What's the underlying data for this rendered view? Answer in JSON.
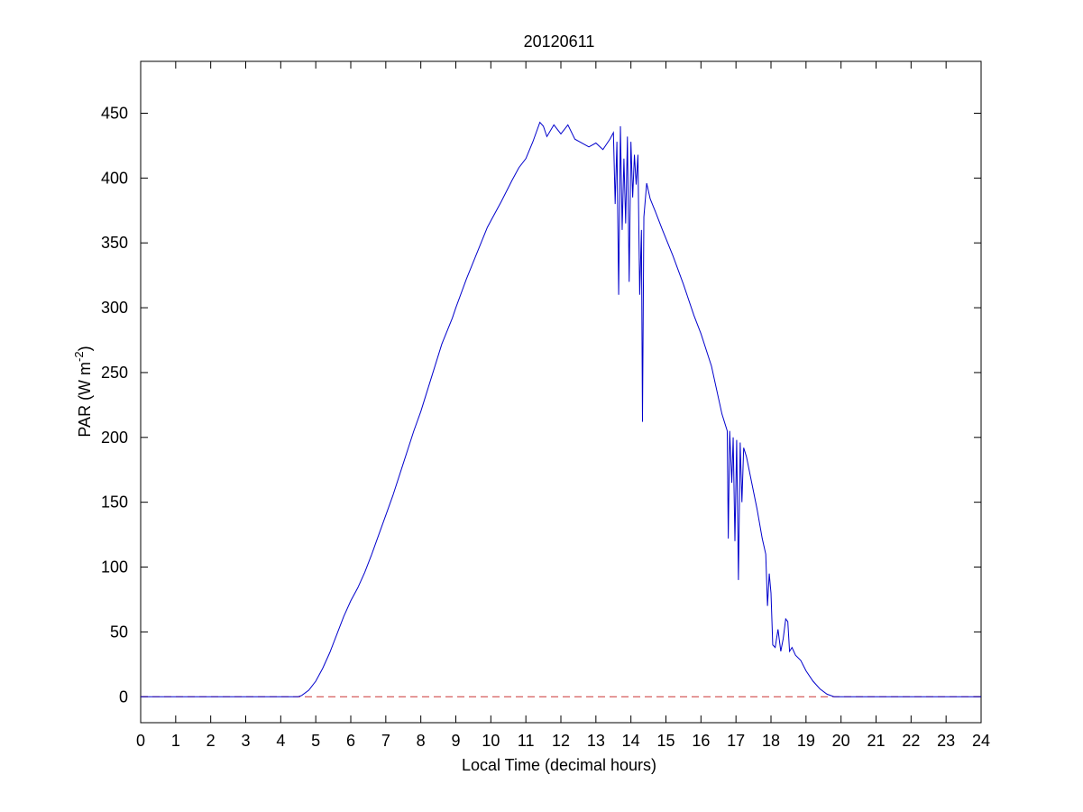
{
  "chart_data": {
    "type": "line",
    "title": "20120611",
    "xlabel": "Local Time (decimal hours)",
    "ylabel_main": "PAR (W m",
    "ylabel_sup": "-2",
    "ylabel_close": ")",
    "xlim": [
      0,
      24
    ],
    "ylim": [
      -20,
      490
    ],
    "xticks": [
      0,
      1,
      2,
      3,
      4,
      5,
      6,
      7,
      8,
      9,
      10,
      11,
      12,
      13,
      14,
      15,
      16,
      17,
      18,
      19,
      20,
      21,
      22,
      23,
      24
    ],
    "yticks": [
      0,
      50,
      100,
      150,
      200,
      250,
      300,
      350,
      400,
      450
    ],
    "grid": false,
    "colors": {
      "series": "#0000cc",
      "reference": "#cc3333"
    },
    "series": [
      {
        "color": "#0000cc",
        "style": "solid",
        "points": [
          [
            0,
            0
          ],
          [
            4.5,
            0
          ],
          [
            4.6,
            1
          ],
          [
            4.8,
            5
          ],
          [
            5.0,
            12
          ],
          [
            5.2,
            22
          ],
          [
            5.4,
            34
          ],
          [
            5.6,
            48
          ],
          [
            5.8,
            62
          ],
          [
            6.0,
            74
          ],
          [
            6.2,
            84
          ],
          [
            6.4,
            96
          ],
          [
            6.6,
            110
          ],
          [
            6.8,
            125
          ],
          [
            7.0,
            140
          ],
          [
            7.2,
            155
          ],
          [
            7.5,
            180
          ],
          [
            7.8,
            205
          ],
          [
            8.0,
            220
          ],
          [
            8.3,
            246
          ],
          [
            8.6,
            272
          ],
          [
            8.9,
            292
          ],
          [
            9.0,
            300
          ],
          [
            9.3,
            322
          ],
          [
            9.6,
            342
          ],
          [
            9.9,
            362
          ],
          [
            10.0,
            367
          ],
          [
            10.3,
            382
          ],
          [
            10.6,
            398
          ],
          [
            10.8,
            408
          ],
          [
            11.0,
            415
          ],
          [
            11.2,
            428
          ],
          [
            11.4,
            443
          ],
          [
            11.5,
            440
          ],
          [
            11.6,
            432
          ],
          [
            11.8,
            441
          ],
          [
            12.0,
            434
          ],
          [
            12.2,
            441
          ],
          [
            12.4,
            430
          ],
          [
            12.6,
            427
          ],
          [
            12.8,
            424
          ],
          [
            13.0,
            427
          ],
          [
            13.2,
            422
          ],
          [
            13.4,
            430
          ],
          [
            13.5,
            435
          ],
          [
            13.55,
            380
          ],
          [
            13.6,
            428
          ],
          [
            13.65,
            310
          ],
          [
            13.7,
            440
          ],
          [
            13.75,
            360
          ],
          [
            13.8,
            415
          ],
          [
            13.85,
            365
          ],
          [
            13.9,
            432
          ],
          [
            13.95,
            320
          ],
          [
            14.0,
            428
          ],
          [
            14.05,
            385
          ],
          [
            14.1,
            418
          ],
          [
            14.15,
            395
          ],
          [
            14.2,
            418
          ],
          [
            14.25,
            310
          ],
          [
            14.3,
            360
          ],
          [
            14.33,
            212
          ],
          [
            14.37,
            370
          ],
          [
            14.45,
            396
          ],
          [
            14.55,
            384
          ],
          [
            14.7,
            374
          ],
          [
            14.9,
            360
          ],
          [
            15.2,
            340
          ],
          [
            15.5,
            318
          ],
          [
            15.8,
            294
          ],
          [
            16.0,
            280
          ],
          [
            16.3,
            255
          ],
          [
            16.6,
            218
          ],
          [
            16.75,
            205
          ],
          [
            16.78,
            122
          ],
          [
            16.82,
            205
          ],
          [
            16.88,
            165
          ],
          [
            16.92,
            200
          ],
          [
            16.97,
            120
          ],
          [
            17.02,
            198
          ],
          [
            17.07,
            90
          ],
          [
            17.12,
            196
          ],
          [
            17.17,
            150
          ],
          [
            17.22,
            192
          ],
          [
            17.3,
            185
          ],
          [
            17.45,
            165
          ],
          [
            17.6,
            145
          ],
          [
            17.75,
            122
          ],
          [
            17.85,
            110
          ],
          [
            17.9,
            70
          ],
          [
            17.95,
            95
          ],
          [
            18.0,
            80
          ],
          [
            18.05,
            40
          ],
          [
            18.12,
            38
          ],
          [
            18.2,
            52
          ],
          [
            18.28,
            35
          ],
          [
            18.35,
            45
          ],
          [
            18.42,
            60
          ],
          [
            18.48,
            58
          ],
          [
            18.53,
            35
          ],
          [
            18.6,
            38
          ],
          [
            18.7,
            32
          ],
          [
            18.85,
            28
          ],
          [
            19.0,
            20
          ],
          [
            19.2,
            12
          ],
          [
            19.4,
            6
          ],
          [
            19.6,
            2
          ],
          [
            19.8,
            0
          ],
          [
            24,
            0
          ]
        ]
      },
      {
        "color": "#cc3333",
        "style": "dashed",
        "points": [
          [
            0,
            0
          ],
          [
            24,
            0
          ]
        ]
      }
    ]
  }
}
